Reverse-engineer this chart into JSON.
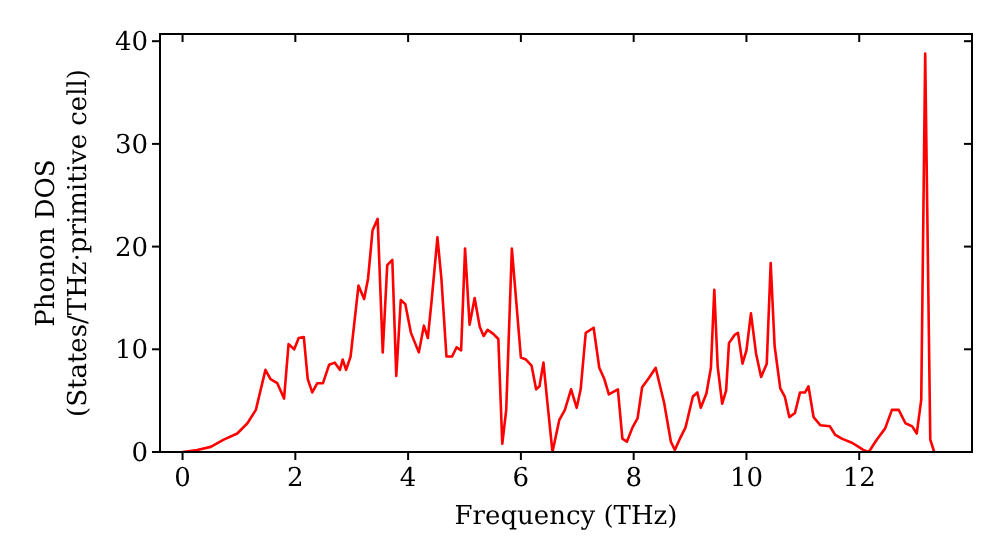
{
  "chart_data": {
    "type": "line",
    "xlabel": "Frequency (THz)",
    "ylabel": "Phonon DOS\n(States/THz·primitive cell)",
    "xlim": [
      -0.4,
      14
    ],
    "ylim": [
      0,
      40.7
    ],
    "xticks": [
      0,
      2,
      4,
      6,
      8,
      10,
      12
    ],
    "yticks": [
      0,
      10,
      20,
      30,
      40
    ],
    "grid": false,
    "marker": "none",
    "line_style": "solid",
    "series": [
      {
        "color": "#ff0000",
        "x": [
          0,
          0.26,
          0.5,
          0.73,
          0.97,
          1.15,
          1.3,
          1.47,
          1.56,
          1.68,
          1.8,
          1.88,
          1.98,
          2.06,
          2.15,
          2.22,
          2.3,
          2.39,
          2.49,
          2.6,
          2.7,
          2.79,
          2.84,
          2.9,
          2.98,
          3.12,
          3.22,
          3.29,
          3.37,
          3.46,
          3.55,
          3.63,
          3.72,
          3.79,
          3.87,
          3.95,
          4.05,
          4.19,
          4.28,
          4.35,
          4.42,
          4.52,
          4.59,
          4.68,
          4.78,
          4.86,
          4.94,
          5.01,
          5.09,
          5.18,
          5.27,
          5.34,
          5.41,
          5.51,
          5.6,
          5.67,
          5.74,
          5.84,
          6.0,
          6.09,
          6.19,
          6.27,
          6.33,
          6.4,
          6.47,
          6.56,
          6.68,
          6.78,
          6.89,
          6.99,
          7.06,
          7.15,
          7.29,
          7.39,
          7.48,
          7.56,
          7.72,
          7.8,
          7.88,
          7.98,
          8.07,
          8.15,
          8.27,
          8.39,
          8.54,
          8.66,
          8.73,
          8.82,
          8.92,
          9.05,
          9.13,
          9.19,
          9.29,
          9.37,
          9.43,
          9.49,
          9.57,
          9.64,
          9.69,
          9.79,
          9.85,
          9.93,
          10.0,
          10.08,
          10.17,
          10.26,
          10.36,
          10.43,
          10.5,
          10.6,
          10.68,
          10.76,
          10.86,
          10.95,
          11.04,
          11.1,
          11.19,
          11.31,
          11.48,
          11.57,
          11.69,
          11.87,
          11.99,
          12.07,
          12.17,
          12.31,
          12.46,
          12.58,
          12.7,
          12.82,
          12.94,
          13.02,
          13.1,
          13.17,
          13.26,
          13.33
        ],
        "values": [
          0,
          0.2,
          0.5,
          1.2,
          1.8,
          2.8,
          4.1,
          8,
          7.1,
          6.7,
          5.2,
          10.5,
          10,
          11.1,
          11.2,
          7.1,
          5.8,
          6.7,
          6.7,
          8.5,
          8.7,
          8,
          9,
          8,
          9.3,
          16.2,
          14.9,
          16.9,
          21.6,
          22.7,
          9.7,
          18.2,
          18.7,
          7.4,
          14.8,
          14.4,
          11.6,
          9.7,
          12.3,
          11.1,
          14.9,
          20.9,
          16.9,
          9.3,
          9.3,
          10.2,
          9.9,
          19.8,
          12.4,
          15,
          12.2,
          11.3,
          11.9,
          11.5,
          11,
          0.8,
          4.1,
          19.8,
          9.2,
          9,
          8.4,
          6.1,
          6.4,
          8.7,
          4.8,
          0,
          3.1,
          4.1,
          6.1,
          4.3,
          6.1,
          11.6,
          12.1,
          8.2,
          7.1,
          5.6,
          6.1,
          1.3,
          1,
          2.4,
          3.3,
          6.3,
          7.2,
          8.2,
          4.8,
          1,
          0.2,
          1.3,
          2.4,
          5.4,
          5.8,
          4.3,
          5.7,
          8.2,
          15.8,
          8.3,
          4.7,
          6,
          10.6,
          11.4,
          11.6,
          8.6,
          9.9,
          13.5,
          9.6,
          7.3,
          8.6,
          18.4,
          10.3,
          6.2,
          5.4,
          3.4,
          3.8,
          5.8,
          5.8,
          6.4,
          3.4,
          2.6,
          2.5,
          1.7,
          1.3,
          0.9,
          0.5,
          0.2,
          0,
          1.2,
          2.3,
          4.1,
          4.1,
          2.8,
          2.5,
          1.8,
          5.1,
          38.8,
          1.2,
          0
        ]
      }
    ]
  }
}
